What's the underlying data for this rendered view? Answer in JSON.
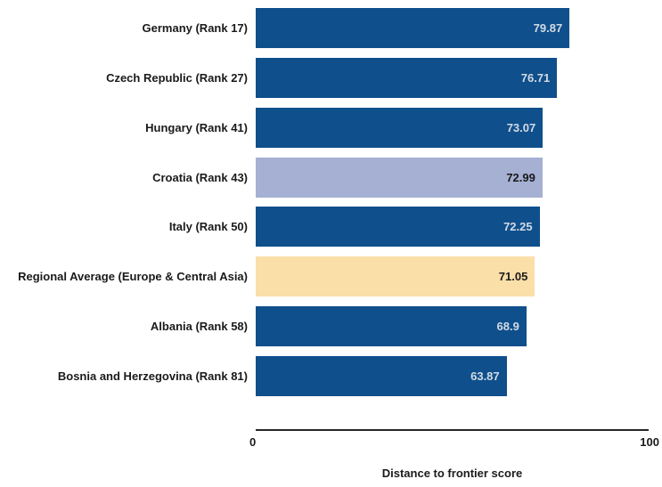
{
  "chart_data": {
    "type": "bar",
    "orientation": "horizontal",
    "title": "",
    "xlabel": "Distance to frontier score",
    "ylabel": "",
    "xlim": [
      0,
      100
    ],
    "x_ticks": [
      "0",
      "100"
    ],
    "grid": false,
    "legend": "none",
    "categories": [
      "Germany (Rank 17)",
      "Czech Republic (Rank 27)",
      "Hungary (Rank 41)",
      "Croatia (Rank 43)",
      "Italy (Rank 50)",
      "Regional Average (Europe & Central Asia)",
      "Albania (Rank 58)",
      "Bosnia and Herzegovina (Rank 81)"
    ],
    "values": [
      79.87,
      76.71,
      73.07,
      72.99,
      72.25,
      71.05,
      68.9,
      63.87
    ],
    "value_labels": [
      "79.87",
      "76.71",
      "73.07",
      "72.99",
      "72.25",
      "71.05",
      "68.9",
      "63.87"
    ],
    "bar_colors": [
      "#0f4f8c",
      "#0f4f8c",
      "#0f4f8c",
      "#a5b0d3",
      "#0f4f8c",
      "#fbdfa9",
      "#0f4f8c",
      "#0f4f8c"
    ],
    "value_label_colors": [
      "#d3dbe3",
      "#d3dbe3",
      "#d3dbe3",
      "#1a1a1a",
      "#d3dbe3",
      "#1a1a1a",
      "#d3dbe3",
      "#d3dbe3"
    ]
  },
  "colors": {
    "background": "#ffffff",
    "bar_default": "#0f4f8c",
    "bar_highlight_country": "#a5b0d3",
    "bar_regional_average": "#fbdfa9",
    "axis_line": "#262626",
    "label_text": "#1a1a1a",
    "value_text_on_dark": "#d3dbe3"
  }
}
